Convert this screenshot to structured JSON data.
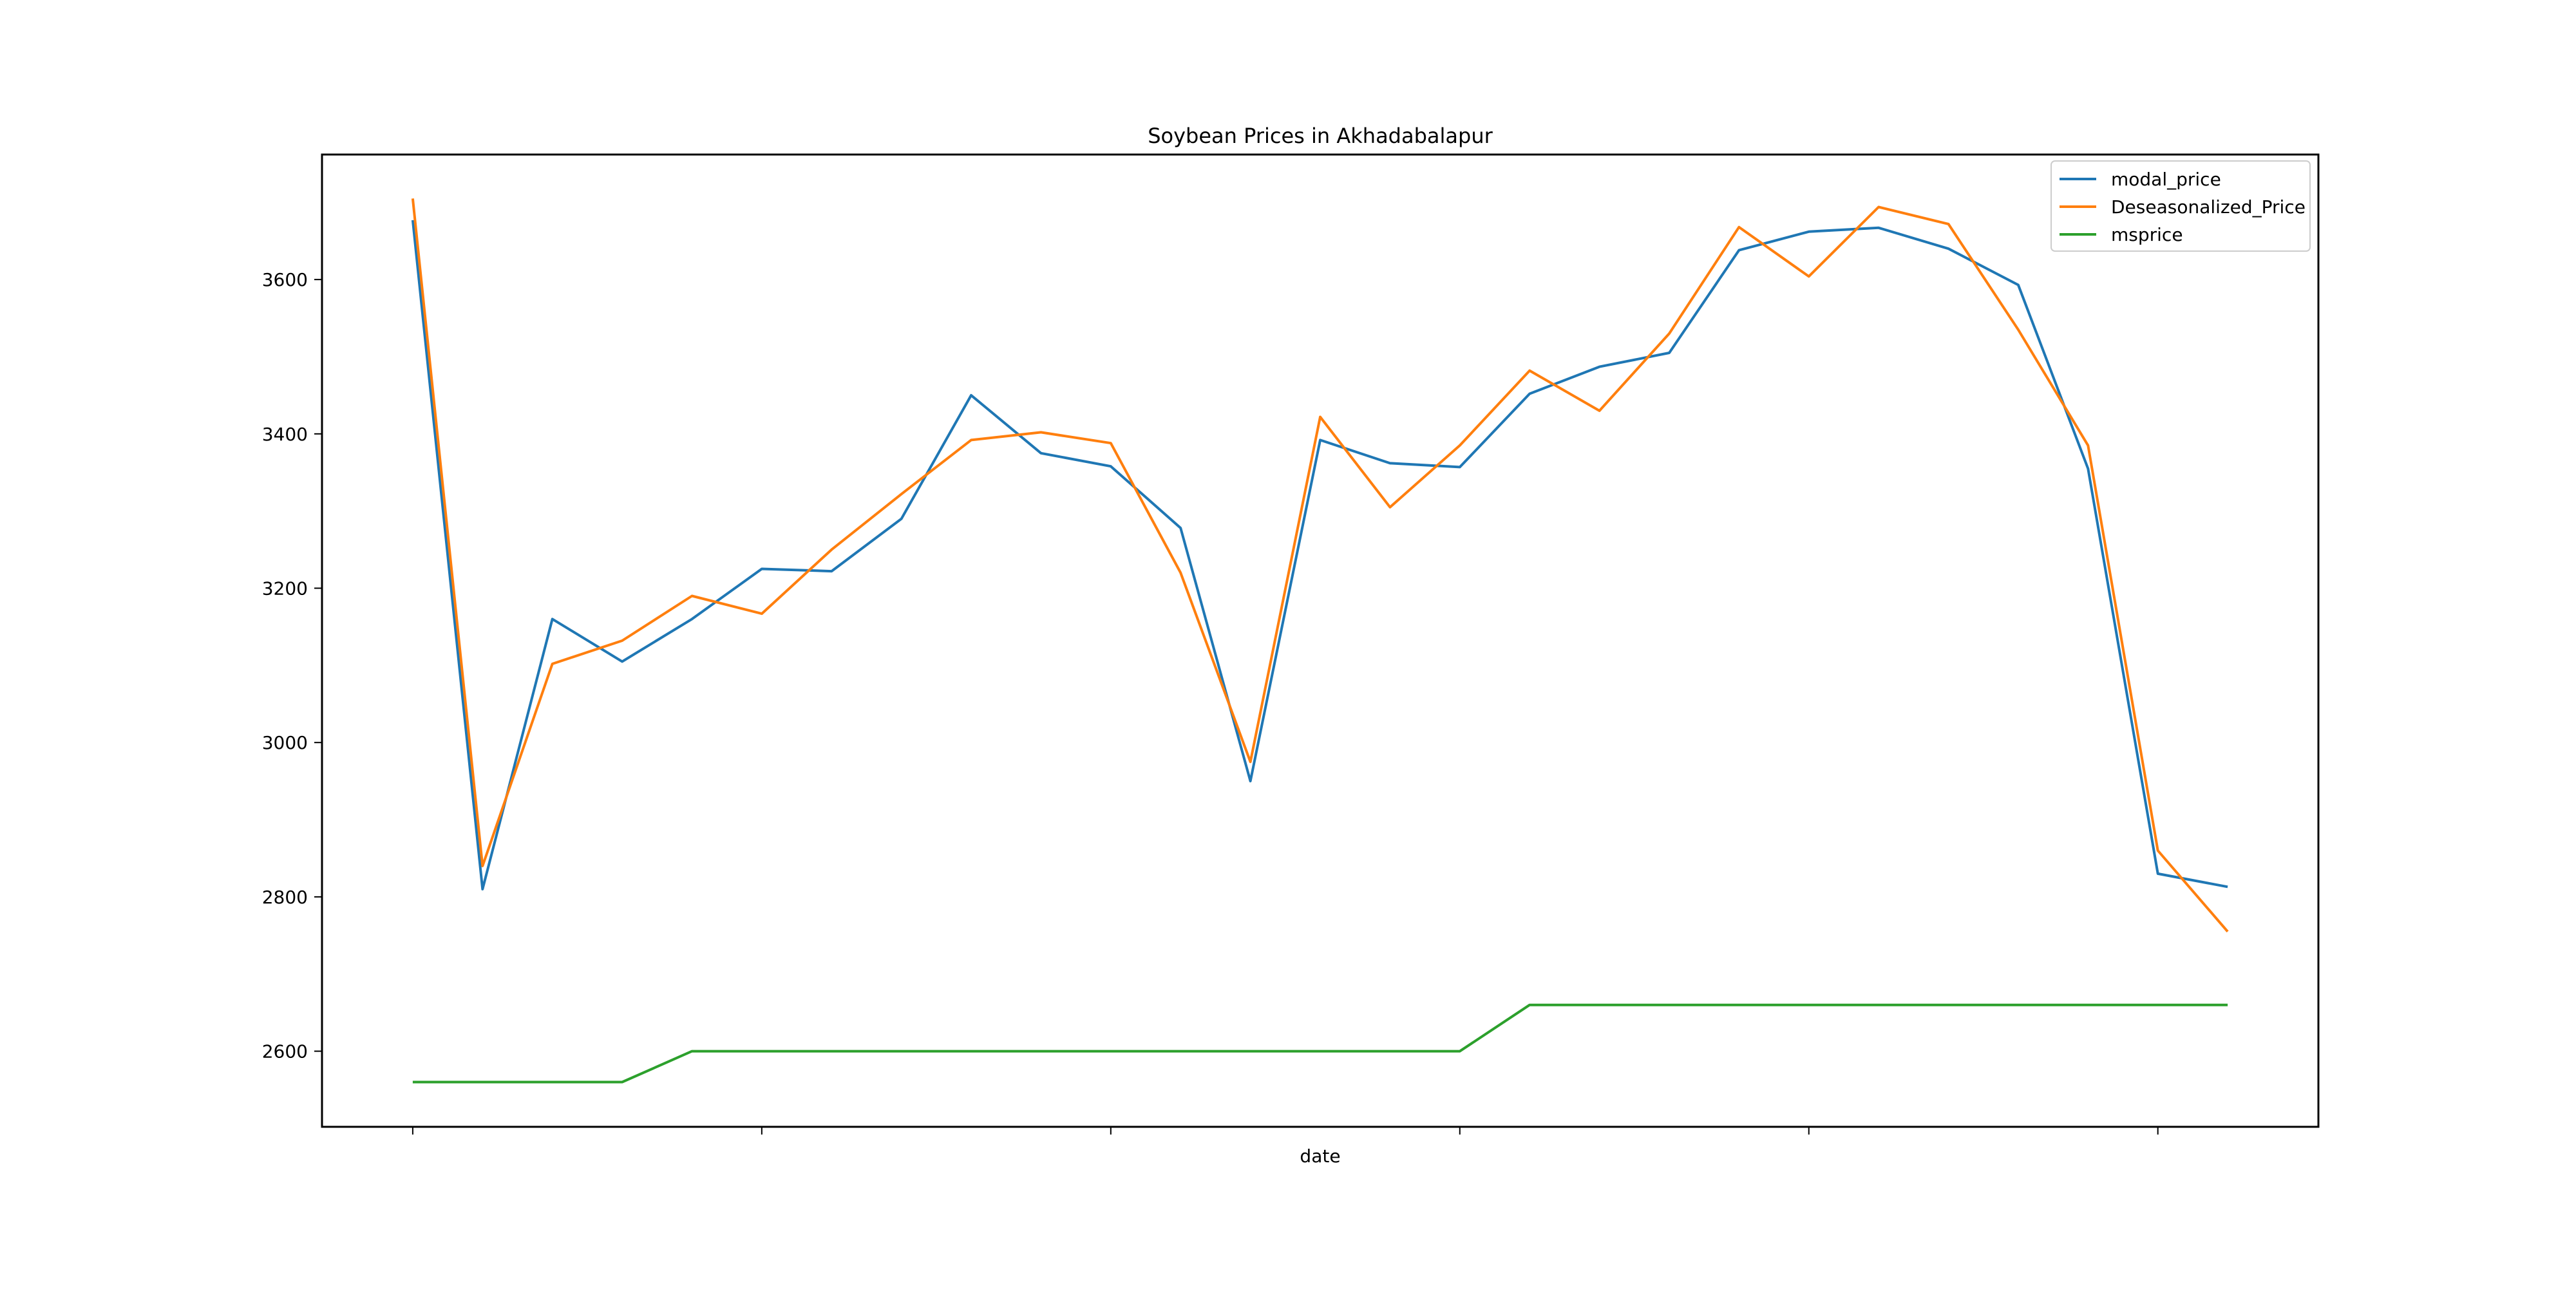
{
  "chart_data": {
    "type": "line",
    "title": "Soybean Prices in Akhadabalapur",
    "xlabel": "date",
    "ylabel": "",
    "xlim": [
      -1.3,
      27.3
    ],
    "ylim": [
      2502,
      3762
    ],
    "y_ticks": [
      2600,
      2800,
      3000,
      3200,
      3400,
      3600
    ],
    "x_tick_positions": [
      0,
      5,
      10,
      15,
      20,
      25
    ],
    "grid": false,
    "legend_position": "top-right",
    "x": [
      0,
      1,
      2,
      3,
      4,
      5,
      6,
      7,
      8,
      9,
      10,
      11,
      12,
      13,
      14,
      15,
      16,
      17,
      18,
      19,
      20,
      21,
      22,
      23,
      24,
      25,
      26
    ],
    "series": [
      {
        "name": "modal_price",
        "color": "#1f77b4",
        "values": [
          3677,
          2810,
          3160,
          3105,
          3160,
          3225,
          3222,
          3290,
          3450,
          3375,
          3358,
          3278,
          2950,
          3392,
          3362,
          3357,
          3452,
          3487,
          3505,
          3638,
          3662,
          3667,
          3640,
          3593,
          3355,
          2830,
          2813
        ]
      },
      {
        "name": "Deseasonalized_Price",
        "color": "#ff7f0e",
        "values": [
          3705,
          2840,
          3102,
          3132,
          3190,
          3167,
          3250,
          3322,
          3392,
          3402,
          3388,
          3220,
          2975,
          3422,
          3305,
          3385,
          3482,
          3430,
          3530,
          3668,
          3604,
          3694,
          3672,
          3535,
          3385,
          2860,
          2755
        ]
      },
      {
        "name": "msprice",
        "color": "#2ca02c",
        "values": [
          2560,
          2560,
          2560,
          2560,
          2600,
          2600,
          2600,
          2600,
          2600,
          2600,
          2600,
          2600,
          2600,
          2600,
          2600,
          2600,
          2660,
          2660,
          2660,
          2660,
          2660,
          2660,
          2660,
          2660,
          2660,
          2660,
          2660
        ]
      }
    ]
  }
}
